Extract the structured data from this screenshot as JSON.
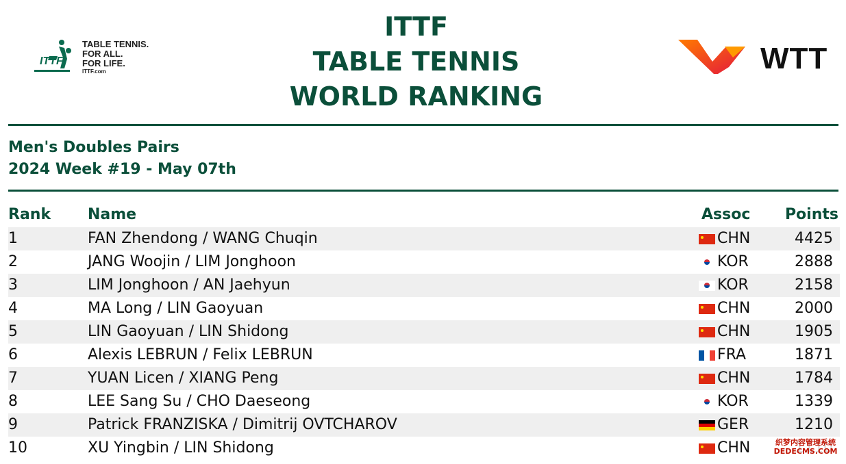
{
  "header": {
    "title_lines": [
      "ITTF",
      "TABLE TENNIS",
      "WORLD RANKING"
    ],
    "ittf_logo": {
      "icon": "ittf-player-logo",
      "tagline": [
        "TABLE TENNIS.",
        "FOR ALL.",
        "FOR LIFE."
      ],
      "url": "ITTF.com"
    },
    "wtt_logo": {
      "icon": "wtt-chevron-logo",
      "text": "WTT"
    }
  },
  "subtitle": {
    "event": "Men's Doubles Pairs",
    "week": "2024 Week #19 - May 07th"
  },
  "table": {
    "headers": {
      "rank": "Rank",
      "name": "Name",
      "assoc": "Assoc",
      "points": "Points"
    },
    "rows": [
      {
        "rank": "1",
        "name": "FAN Zhendong / WANG Chuqin",
        "assoc": "CHN",
        "flag": "china-flag-icon",
        "points": "4425"
      },
      {
        "rank": "2",
        "name": "JANG Woojin / LIM Jonghoon",
        "assoc": "KOR",
        "flag": "korea-flag-icon",
        "points": "2888"
      },
      {
        "rank": "3",
        "name": "LIM Jonghoon / AN Jaehyun",
        "assoc": "KOR",
        "flag": "korea-flag-icon",
        "points": "2158"
      },
      {
        "rank": "4",
        "name": "MA Long / LIN Gaoyuan",
        "assoc": "CHN",
        "flag": "china-flag-icon",
        "points": "2000"
      },
      {
        "rank": "5",
        "name": "LIN Gaoyuan / LIN Shidong",
        "assoc": "CHN",
        "flag": "china-flag-icon",
        "points": "1905"
      },
      {
        "rank": "6",
        "name": "Alexis LEBRUN / Felix LEBRUN",
        "assoc": "FRA",
        "flag": "france-flag-icon",
        "points": "1871"
      },
      {
        "rank": "7",
        "name": "YUAN Licen / XIANG Peng",
        "assoc": "CHN",
        "flag": "china-flag-icon",
        "points": "1784"
      },
      {
        "rank": "8",
        "name": "LEE Sang Su / CHO Daeseong",
        "assoc": "KOR",
        "flag": "korea-flag-icon",
        "points": "1339"
      },
      {
        "rank": "9",
        "name": "Patrick FRANZISKA / Dimitrij OVTCHAROV",
        "assoc": "GER",
        "flag": "germany-flag-icon",
        "points": "1210"
      },
      {
        "rank": "10",
        "name": "XU Yingbin / LIN Shidong",
        "assoc": "CHN",
        "flag": "china-flag-icon",
        "points": "1110"
      }
    ]
  },
  "colors": {
    "brand_green": "#0b4f3a",
    "row_stripe": "#efefef"
  },
  "watermark": [
    "织梦内容管理系统",
    "DEDECMS.COM"
  ]
}
